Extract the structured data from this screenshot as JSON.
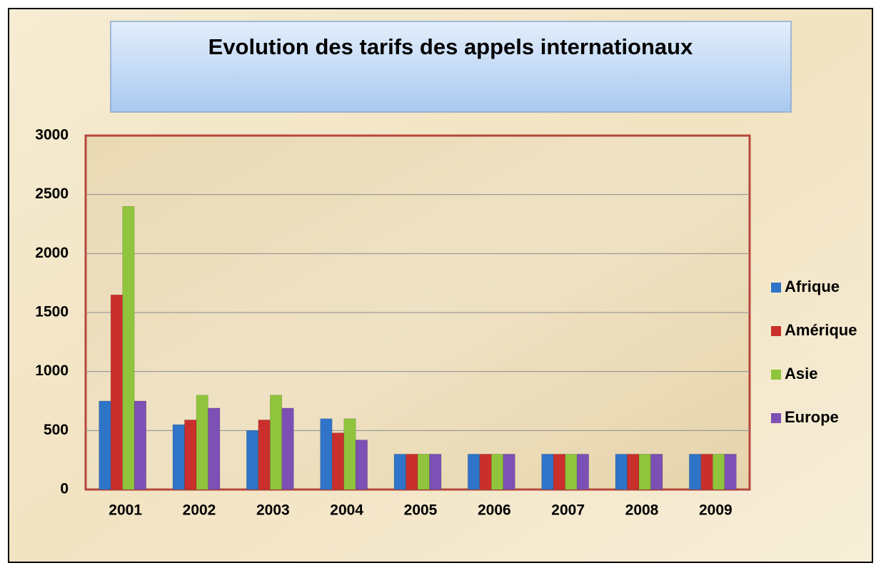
{
  "chart_data": {
    "type": "bar",
    "title": "Evolution des tarifs des appels internationaux",
    "categories": [
      "2001",
      "2002",
      "2003",
      "2004",
      "2005",
      "2006",
      "2007",
      "2008",
      "2009"
    ],
    "series": [
      {
        "name": "Afrique",
        "color": "#2f74c8",
        "values": [
          750,
          550,
          500,
          600,
          300,
          300,
          300,
          300,
          300
        ]
      },
      {
        "name": "Amérique",
        "color": "#c9302c",
        "values": [
          1650,
          590,
          590,
          480,
          300,
          300,
          300,
          300,
          300
        ]
      },
      {
        "name": "Asie",
        "color": "#8fc43c",
        "values": [
          2400,
          800,
          800,
          600,
          300,
          300,
          300,
          300,
          300
        ]
      },
      {
        "name": "Europe",
        "color": "#7c50b4",
        "values": [
          750,
          690,
          690,
          420,
          300,
          300,
          300,
          300,
          300
        ]
      }
    ],
    "ylim": [
      0,
      3000
    ],
    "yticks": [
      0,
      500,
      1000,
      1500,
      2000,
      2500,
      3000
    ],
    "grid": true,
    "legend": "right"
  }
}
